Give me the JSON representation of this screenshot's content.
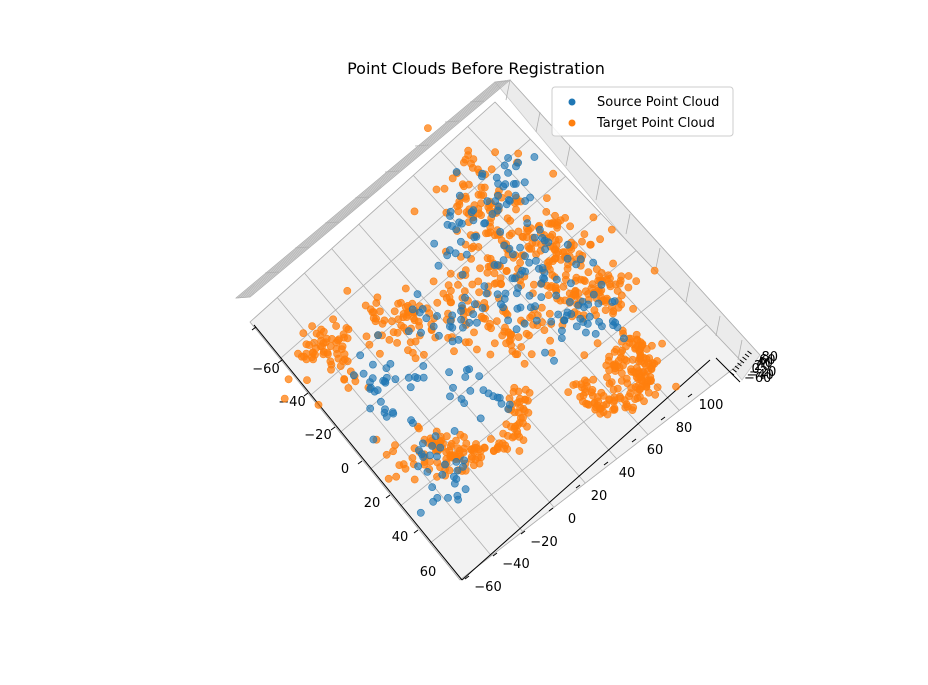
{
  "chart_data": {
    "type": "scatter",
    "title": "Point Clouds Before Registration",
    "legend": {
      "placement": "top-right",
      "entries": [
        "Source Point Cloud",
        "Target Point Cloud"
      ]
    },
    "x_axis": {
      "ticks": [
        "−60",
        "−40",
        "−20",
        "0",
        "20",
        "40",
        "60"
      ],
      "range": [
        -70,
        70
      ]
    },
    "y_axis": {
      "ticks": [
        "−60",
        "−40",
        "−20",
        "0",
        "20",
        "40",
        "60",
        "80",
        "100"
      ],
      "range": [
        -65,
        110
      ]
    },
    "z_axis": {
      "ticks": [
        "−60",
        "−40",
        "−20",
        "0",
        "20",
        "40",
        "60",
        "80"
      ],
      "range": [
        -70,
        90
      ]
    },
    "grid": true,
    "series": [
      {
        "name": "Source Point Cloud",
        "color": "#1f77b4",
        "shape": "3D curve-like point set (blue)",
        "approx_points": 300
      },
      {
        "name": "Target Point Cloud",
        "color": "#ff7f0e",
        "shape": "3D curve-like point set (orange)",
        "approx_points": 800
      }
    ]
  }
}
